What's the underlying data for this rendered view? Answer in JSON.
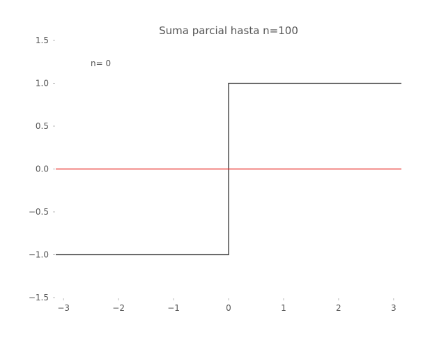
{
  "chart_data": {
    "type": "line",
    "title": "Suma parcial hasta n=100",
    "xlabel": "",
    "ylabel": "",
    "xlim": [
      -3.14159,
      3.14159
    ],
    "ylim": [
      -1.5,
      1.5
    ],
    "x_ticks": [
      -3,
      -2,
      -1,
      0,
      1,
      2,
      3
    ],
    "x_tick_labels": [
      "−3",
      "−2",
      "−1",
      "0",
      "1",
      "2",
      "3"
    ],
    "y_ticks": [
      -1.5,
      -1.0,
      -0.5,
      0.0,
      0.5,
      1.0,
      1.5
    ],
    "y_tick_labels": [
      "−1.5",
      "−1.0",
      "−0.5",
      "0.0",
      "0.5",
      "1.0",
      "1.5"
    ],
    "grid": false,
    "annotation": "n= 0",
    "series": [
      {
        "color": "#333333",
        "style": "step",
        "x": [
          -3.14159,
          0,
          0,
          3.14159
        ],
        "y": [
          -1,
          -1,
          1,
          1
        ]
      },
      {
        "color": "#e8211b",
        "style": "line",
        "x": [
          -3.14159,
          3.14159
        ],
        "y": [
          0,
          0
        ]
      }
    ]
  }
}
